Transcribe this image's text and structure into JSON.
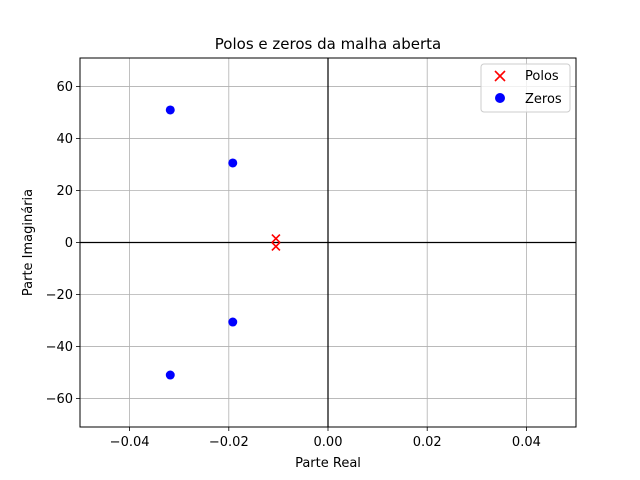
{
  "chart_data": {
    "type": "scatter",
    "title": "Polos e zeros da malha aberta",
    "xlabel": "Parte Real",
    "ylabel": "Parte Imaginária",
    "xlim": [
      -0.05,
      0.05
    ],
    "ylim": [
      -71,
      71
    ],
    "xticks": [
      -0.04,
      -0.02,
      0.0,
      0.02,
      0.04
    ],
    "xtick_labels": [
      "−0.04",
      "−0.02",
      "0.00",
      "0.02",
      "0.04"
    ],
    "yticks": [
      -60,
      -40,
      -20,
      0,
      20,
      40,
      60
    ],
    "ytick_labels": [
      "−60",
      "−40",
      "−20",
      "0",
      "20",
      "40",
      "60"
    ],
    "grid": true,
    "reference_lines": {
      "x": 0,
      "y": 0
    },
    "legend_position": "top-right",
    "series": [
      {
        "name": "Polos",
        "marker": "x",
        "color": "#ff0000",
        "points": [
          {
            "x": -0.0105,
            "y": 1.5
          },
          {
            "x": -0.0105,
            "y": -1.5
          }
        ]
      },
      {
        "name": "Zeros",
        "marker": "circle",
        "color": "#0000ff",
        "points": [
          {
            "x": -0.0318,
            "y": 51.0
          },
          {
            "x": -0.0318,
            "y": -51.0
          },
          {
            "x": -0.0192,
            "y": 30.6
          },
          {
            "x": -0.0192,
            "y": -30.6
          }
        ]
      }
    ]
  }
}
